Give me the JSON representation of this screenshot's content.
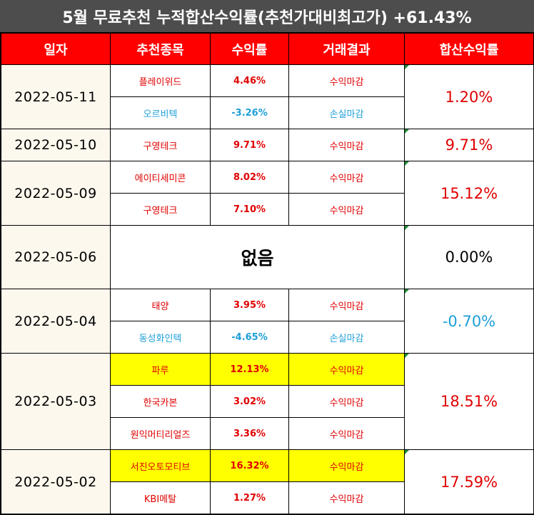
{
  "title": "5월 무료추천 누적합산수익률(추천가대비최고가) +61.43%",
  "headers": [
    "일자",
    "추천종목",
    "수익률",
    "거래결과",
    "합산수익률"
  ],
  "colors": {
    "red": "#e00000",
    "blue": "#1e9fd8",
    "header": "#ff0000",
    "title_bg": "#4d4d4d",
    "highlight": "#ffff00"
  },
  "groups": [
    {
      "date": "2022-05-11",
      "total": "1.20%",
      "total_color": "red",
      "rows": [
        {
          "name": "플레이위드",
          "rate": "4.46%",
          "result": "수익마감",
          "color": "red",
          "highlight": false
        },
        {
          "name": "오르비텍",
          "rate": "-3.26%",
          "result": "손실마감",
          "color": "blue",
          "highlight": false
        }
      ]
    },
    {
      "date": "2022-05-10",
      "total": "9.71%",
      "total_color": "red",
      "rows": [
        {
          "name": "구영테크",
          "rate": "9.71%",
          "result": "수익마감",
          "color": "red",
          "highlight": false
        }
      ]
    },
    {
      "date": "2022-05-09",
      "total": "15.12%",
      "total_color": "red",
      "rows": [
        {
          "name": "에이티세미콘",
          "rate": "8.02%",
          "result": "수익마감",
          "color": "red",
          "highlight": false
        },
        {
          "name": "구영테크",
          "rate": "7.10%",
          "result": "수익마감",
          "color": "red",
          "highlight": false
        }
      ]
    },
    {
      "date": "2022-05-06",
      "total": "0.00%",
      "total_color": "black",
      "none_label": "없음",
      "rows": []
    },
    {
      "date": "2022-05-04",
      "total": "-0.70%",
      "total_color": "blue",
      "rows": [
        {
          "name": "태양",
          "rate": "3.95%",
          "result": "수익마감",
          "color": "red",
          "highlight": false
        },
        {
          "name": "동성화인텍",
          "rate": "-4.65%",
          "result": "손실마감",
          "color": "blue",
          "highlight": false
        }
      ]
    },
    {
      "date": "2022-05-03",
      "total": "18.51%",
      "total_color": "red",
      "rows": [
        {
          "name": "파루",
          "rate": "12.13%",
          "result": "수익마감",
          "color": "red",
          "highlight": true
        },
        {
          "name": "한국카본",
          "rate": "3.02%",
          "result": "수익마감",
          "color": "red",
          "highlight": false
        },
        {
          "name": "원익머티리얼즈",
          "rate": "3.36%",
          "result": "수익마감",
          "color": "red",
          "highlight": false
        }
      ]
    },
    {
      "date": "2022-05-02",
      "total": "17.59%",
      "total_color": "red",
      "rows": [
        {
          "name": "서진오토모티브",
          "rate": "16.32%",
          "result": "수익마감",
          "color": "red",
          "highlight": true
        },
        {
          "name": "KBI메탈",
          "rate": "1.27%",
          "result": "수익마감",
          "color": "red",
          "highlight": false
        }
      ]
    }
  ]
}
